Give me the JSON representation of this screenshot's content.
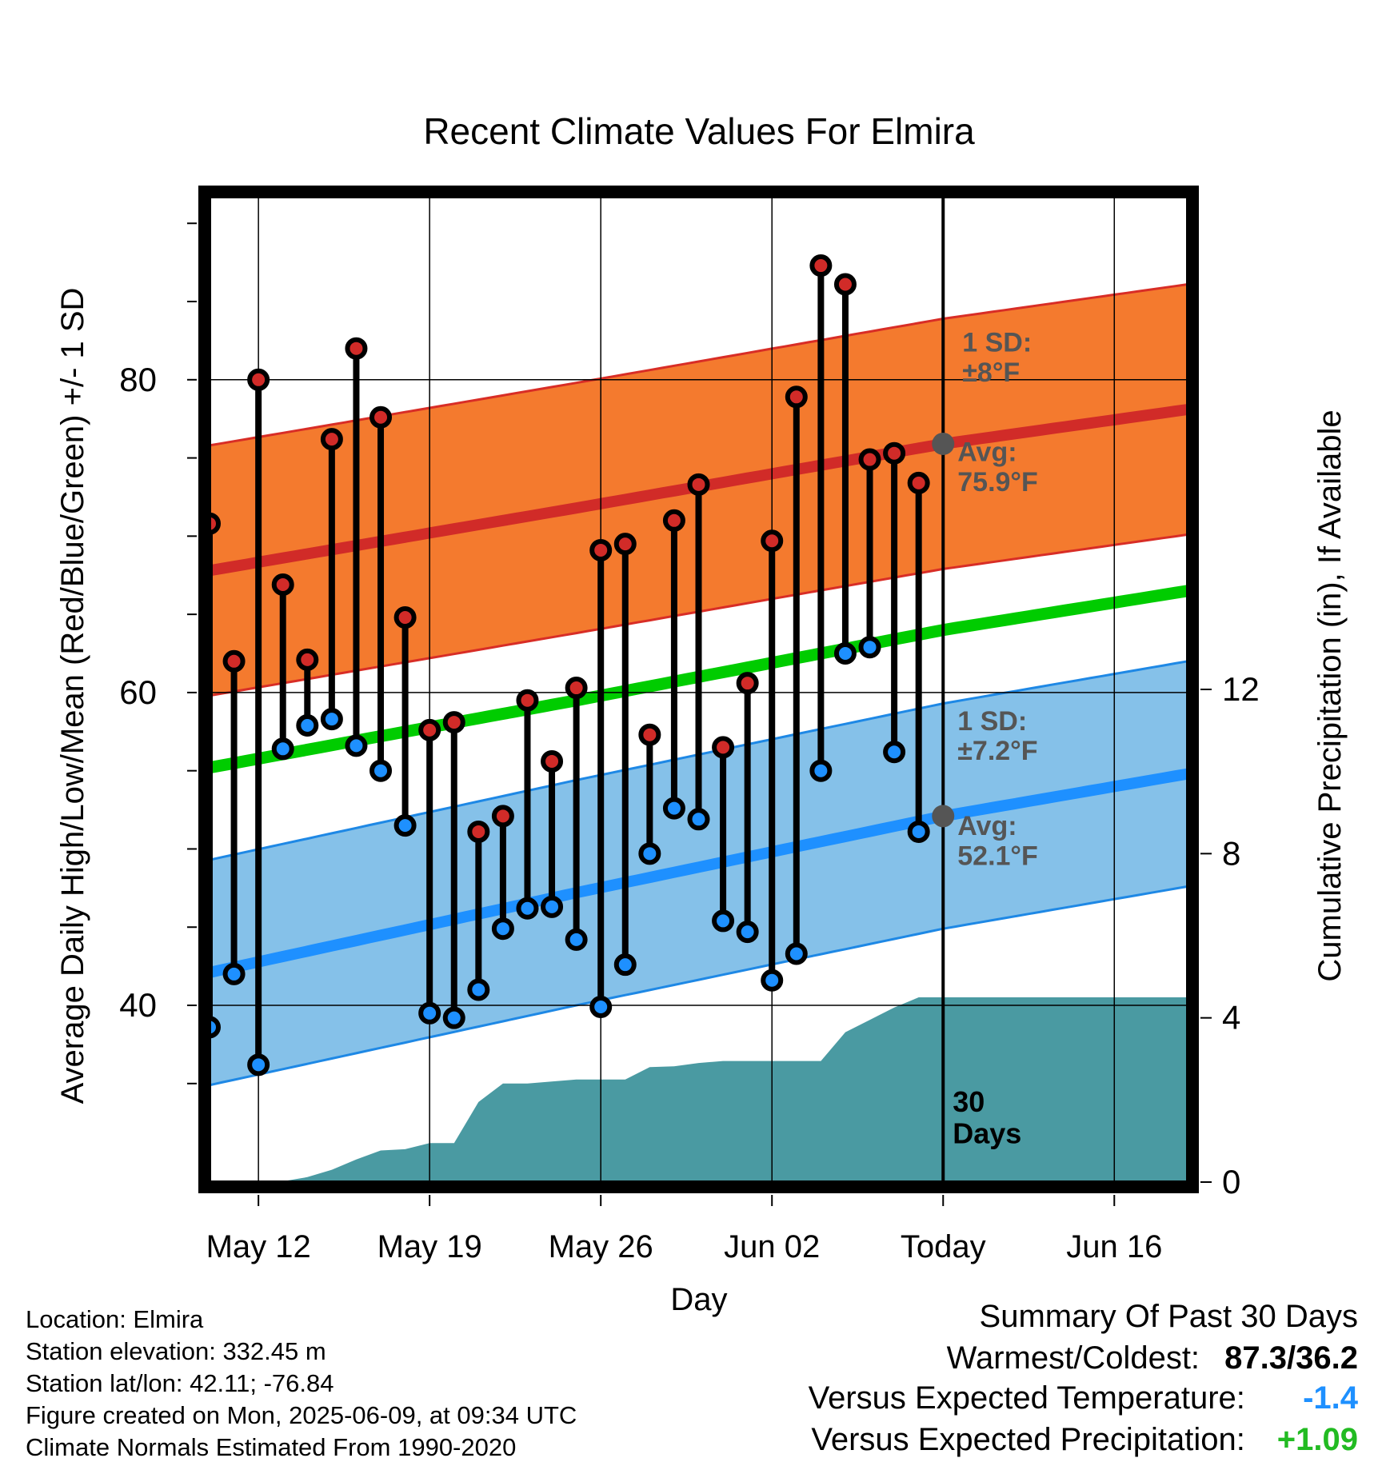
{
  "colors": {
    "high_band": "#f47a2e",
    "high_band_edge": "#d82d26",
    "high_avg": "#d12b28",
    "low_band": "#85c1e9",
    "low_band_edge": "#1e88e5",
    "low_avg": "#1e90ff",
    "mean": "#00cc00",
    "precip": "#4a9aa2",
    "high_dot": "#d12b28",
    "low_dot": "#1e90ff",
    "avg_marker": "#555555",
    "annotation": "#555555",
    "cold_text": "#1e90ff",
    "wet_text": "#22bb22"
  },
  "chart_data": {
    "type": "line",
    "title": "Recent Climate Values For Elmira",
    "xlabel": "Day",
    "ylabel": "Average Daily High/Low/Mean (Red/Blue/Green) +/- 1 SD",
    "y2label": "Cumulative Precipitation (in), If Available",
    "x_range": [
      "2025-05-10",
      "2025-06-19"
    ],
    "ylim": [
      28.7,
      91.7
    ],
    "y2lim": [
      0,
      24
    ],
    "y_ticks": [
      "40",
      "60",
      "80"
    ],
    "y2_ticks": [
      "0",
      "4",
      "8",
      "12"
    ],
    "x_tick_labels": [
      "May 12",
      "May 19",
      "May 26",
      "Jun 02",
      "Today",
      "Jun 16"
    ],
    "x_tick_dates": [
      "2025-05-12",
      "2025-05-19",
      "2025-05-26",
      "2025-06-02",
      "2025-06-09",
      "2025-06-16"
    ],
    "grid": true,
    "today": "2025-06-09",
    "today_label": "30 Days",
    "normal_high": {
      "dates": [
        "2025-05-10",
        "2025-05-25",
        "2025-06-09",
        "2025-06-19"
      ],
      "avg": [
        67.8,
        71.8,
        75.9,
        78.1
      ],
      "sd": 8,
      "annotation_sd": "1 SD:\n±8°F",
      "annotation_avg": "Avg:\n75.9°F"
    },
    "normal_low": {
      "dates": [
        "2025-05-10",
        "2025-05-25",
        "2025-06-09",
        "2025-06-19"
      ],
      "avg": [
        42.1,
        47.2,
        52.1,
        54.8
      ],
      "sd": 7.2,
      "annotation_sd": "1 SD:\n±7.2°F",
      "annotation_avg": "Avg:\n52.1°F"
    },
    "normal_mean": {
      "dates": [
        "2025-05-10",
        "2025-05-25",
        "2025-06-09",
        "2025-06-19"
      ],
      "values": [
        55.2,
        59.5,
        64.0,
        66.5
      ]
    },
    "daily": {
      "dates": [
        "2025-05-10",
        "2025-05-11",
        "2025-05-12",
        "2025-05-13",
        "2025-05-14",
        "2025-05-15",
        "2025-05-16",
        "2025-05-17",
        "2025-05-18",
        "2025-05-19",
        "2025-05-20",
        "2025-05-21",
        "2025-05-22",
        "2025-05-23",
        "2025-05-24",
        "2025-05-25",
        "2025-05-26",
        "2025-05-27",
        "2025-05-28",
        "2025-05-29",
        "2025-05-30",
        "2025-05-31",
        "2025-06-01",
        "2025-06-02",
        "2025-06-03",
        "2025-06-04",
        "2025-06-05",
        "2025-06-06",
        "2025-06-07",
        "2025-06-08"
      ],
      "high": [
        70.8,
        62.0,
        80.0,
        66.9,
        62.1,
        76.2,
        82.0,
        77.6,
        64.8,
        57.6,
        58.1,
        51.1,
        52.1,
        59.5,
        55.6,
        60.3,
        69.1,
        69.5,
        57.3,
        71.0,
        73.3,
        56.5,
        60.6,
        69.7,
        78.9,
        87.3,
        86.1,
        74.9,
        75.3,
        73.4
      ],
      "low": [
        38.6,
        42.0,
        36.2,
        56.4,
        57.9,
        58.3,
        56.6,
        55.0,
        51.5,
        39.5,
        39.2,
        41.0,
        44.9,
        46.2,
        46.3,
        44.2,
        39.9,
        42.6,
        49.7,
        52.6,
        51.9,
        45.4,
        44.7,
        41.6,
        43.3,
        55.0,
        62.5,
        62.9,
        56.2,
        51.1
      ]
    },
    "precip": {
      "dates": [
        "2025-05-10",
        "2025-05-11",
        "2025-05-12",
        "2025-05-13",
        "2025-05-14",
        "2025-05-15",
        "2025-05-16",
        "2025-05-17",
        "2025-05-18",
        "2025-05-19",
        "2025-05-20",
        "2025-05-21",
        "2025-05-22",
        "2025-05-23",
        "2025-05-24",
        "2025-05-25",
        "2025-05-26",
        "2025-05-27",
        "2025-05-28",
        "2025-05-29",
        "2025-05-30",
        "2025-05-31",
        "2025-06-01",
        "2025-06-02",
        "2025-06-03",
        "2025-06-04",
        "2025-06-05",
        "2025-06-06",
        "2025-06-07",
        "2025-06-08",
        "2025-06-09",
        "2025-06-19"
      ],
      "cumulative": [
        0,
        0,
        0,
        0.02,
        0.12,
        0.3,
        0.55,
        0.77,
        0.8,
        0.95,
        0.95,
        1.95,
        2.4,
        2.4,
        2.45,
        2.5,
        2.5,
        2.5,
        2.8,
        2.82,
        2.9,
        2.95,
        2.95,
        2.95,
        2.95,
        2.95,
        3.65,
        3.95,
        4.25,
        4.5,
        4.5,
        4.5
      ]
    }
  },
  "metadata": {
    "location": "Location: Elmira",
    "elevation": "Station elevation: 332.45 m",
    "latlon": "Station lat/lon: 42.11; -76.84",
    "created": "Figure created on Mon, 2025-06-09, at 09:34 UTC",
    "normals": "Climate Normals Estimated From 1990-2020"
  },
  "summary": {
    "heading": "Summary Of Past 30 Days",
    "warm_cold_label": "Warmest/Coldest:",
    "warm_cold_value": "87.3/36.2",
    "temp_label": "Versus Expected Temperature:",
    "temp_value": "-1.4",
    "precip_label": "Versus Expected Precipitation:",
    "precip_value": "+1.09"
  }
}
